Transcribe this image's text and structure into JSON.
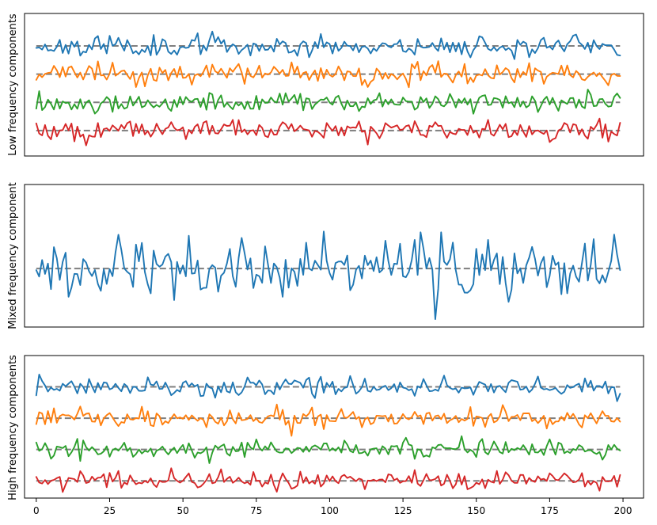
{
  "chart_data": [
    {
      "type": "line",
      "ylabel": "Low frequency components",
      "x_range": [
        0,
        199
      ],
      "xlim": [
        -4,
        207
      ],
      "ylim": [
        -3.9,
        1.15
      ],
      "x_ticks_visible": false,
      "baselines": [
        0,
        -1,
        -2,
        -3
      ],
      "series": [
        {
          "color": "#1f77b4",
          "offset": 0,
          "amplitude": 0.38,
          "seed": 11
        },
        {
          "color": "#ff7f0e",
          "offset": -1,
          "amplitude": 0.38,
          "seed": 23
        },
        {
          "color": "#2ca02c",
          "offset": -2,
          "amplitude": 0.34,
          "seed": 37
        },
        {
          "color": "#d62728",
          "offset": -3,
          "amplitude": 0.34,
          "seed": 51
        }
      ]
    },
    {
      "type": "line",
      "ylabel": "Mixed frequency component",
      "x_range": [
        0,
        199
      ],
      "xlim": [
        -4,
        207
      ],
      "ylim": [
        -2.3,
        3.3
      ],
      "x_ticks_visible": false,
      "baselines": [
        0
      ],
      "series": [
        {
          "color": "#1f77b4",
          "offset": 0,
          "amplitude": 1.2,
          "seed": 77
        }
      ]
    },
    {
      "type": "line",
      "ylabel": "High frequency components",
      "x_range": [
        0,
        199
      ],
      "xlim": [
        -4,
        207
      ],
      "ylim": [
        -3.55,
        1.0
      ],
      "x_ticks": [
        0,
        25,
        50,
        75,
        100,
        125,
        150,
        175,
        200
      ],
      "x_ticks_visible": true,
      "baselines": [
        0,
        -1,
        -2,
        -3
      ],
      "series": [
        {
          "color": "#1f77b4",
          "offset": 0,
          "amplitude": 0.3,
          "seed": 91
        },
        {
          "color": "#ff7f0e",
          "offset": -1,
          "amplitude": 0.3,
          "seed": 103
        },
        {
          "color": "#2ca02c",
          "offset": -2,
          "amplitude": 0.3,
          "seed": 117
        },
        {
          "color": "#d62728",
          "offset": -3,
          "amplitude": 0.3,
          "seed": 131
        }
      ]
    }
  ]
}
